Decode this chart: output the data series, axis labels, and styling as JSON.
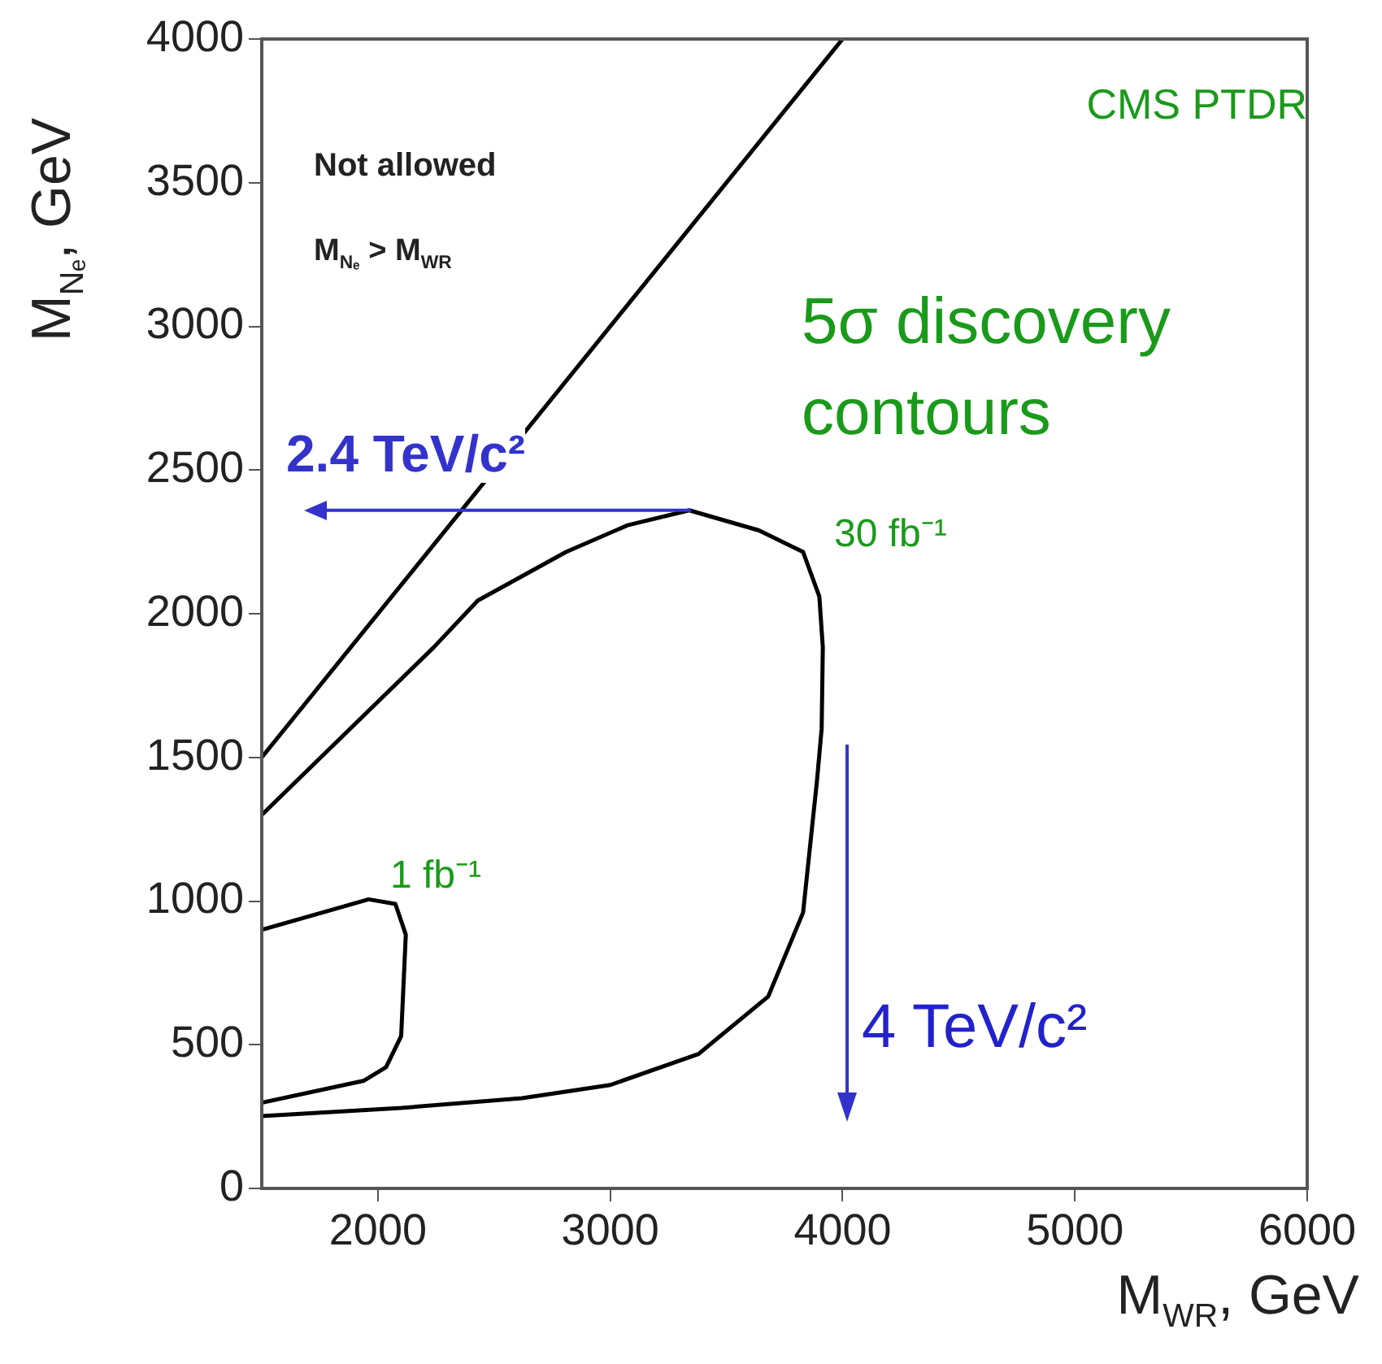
{
  "chart_data": {
    "type": "line",
    "xlabel": "M$_{WR}$, GeV",
    "ylabel": "M$_{Nₑ}$, GeV",
    "xlim": [
      1500,
      6000
    ],
    "xticks": [
      2000,
      3000,
      4000,
      5000,
      6000
    ],
    "ylim": [
      0,
      4000
    ],
    "yticks": [
      0,
      500,
      1000,
      1500,
      2000,
      2500,
      3000,
      3500,
      4000
    ],
    "grid": false,
    "legend": false,
    "marker": "none",
    "line_style": "solid",
    "series": [
      {
        "color": "#000000",
        "x": [
          1500,
          4000
        ],
        "values": [
          1500,
          4000
        ]
      },
      {
        "color": "#000000",
        "x": [
          1500,
          2240,
          2430,
          2810,
          3075,
          3340,
          3640,
          3830,
          3900,
          3915,
          3910,
          3890,
          3830,
          3680,
          3380,
          3000,
          2620,
          2100,
          1500
        ],
        "values": [
          1300,
          1883,
          2046,
          2215,
          2308,
          2360,
          2290,
          2215,
          2060,
          1883,
          1600,
          1420,
          960,
          668,
          468,
          360,
          314,
          280,
          252
        ]
      },
      {
        "color": "#000000",
        "x": [
          1500,
          1960,
          2075,
          2120,
          2100,
          2035,
          1940,
          1500
        ],
        "values": [
          900,
          1006,
          990,
          883,
          530,
          422,
          375,
          298
        ]
      }
    ],
    "ref_lines": [
      {
        "axis": "y",
        "value": 2360,
        "label": "2.4 TeV/c²",
        "color": "#3333cc"
      }
    ],
    "annotations": [
      "CMS PTDR",
      "Not allowed",
      "M$_{Nₑ}$ > M$_{WR}$",
      "5σ discovery contours",
      "30 fb⁻¹",
      "1 fb⁻¹",
      "4 TeV/c²"
    ]
  }
}
